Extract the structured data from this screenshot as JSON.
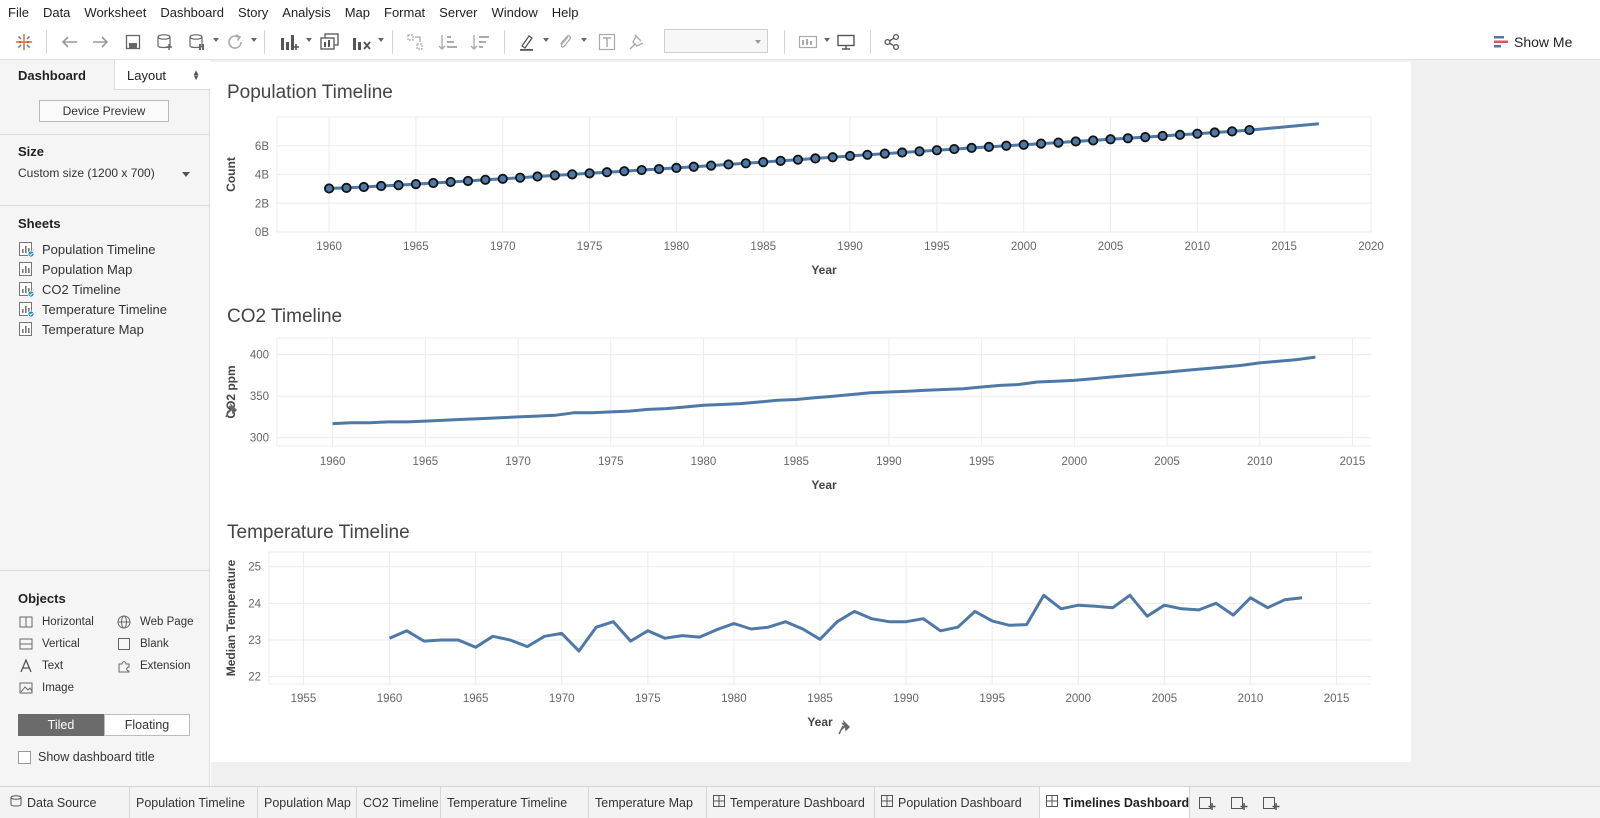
{
  "menu": [
    "File",
    "Data",
    "Worksheet",
    "Dashboard",
    "Story",
    "Analysis",
    "Map",
    "Format",
    "Server",
    "Window",
    "Help"
  ],
  "toolbar": {
    "show_me_label": "Show Me",
    "icons": [
      "tableau-logo-icon",
      "undo-icon",
      "redo-icon",
      "save-icon",
      "new-data-source-icon",
      "pause-updates-icon",
      "refresh-icon",
      "new-worksheet-icon",
      "duplicate-icon",
      "clear-sheet-icon",
      "swap-icon",
      "sort-ascending-icon",
      "sort-descending-icon",
      "highlight-icon",
      "annotate-icon",
      "text-label-icon",
      "pin-icon",
      "fit-select",
      "card-view-icon",
      "presentation-icon",
      "share-icon"
    ]
  },
  "side_panel": {
    "tab_dashboard": "Dashboard",
    "tab_layout": "Layout",
    "device_preview": "Device Preview",
    "size_heading": "Size",
    "size_value": "Custom size (1200 x 700)",
    "sheets_heading": "Sheets",
    "sheets": [
      {
        "label": "Population Timeline",
        "used": true
      },
      {
        "label": "Population Map",
        "used": false
      },
      {
        "label": "CO2 Timeline",
        "used": true
      },
      {
        "label": "Temperature Timeline",
        "used": true
      },
      {
        "label": "Temperature Map",
        "used": false
      }
    ],
    "objects_heading": "Objects",
    "objects": [
      {
        "label": "Horizontal",
        "icon": "horizontal-container-icon"
      },
      {
        "label": "Web Page",
        "icon": "globe-icon"
      },
      {
        "label": "Vertical",
        "icon": "vertical-container-icon"
      },
      {
        "label": "Blank",
        "icon": "blank-icon"
      },
      {
        "label": "Text",
        "icon": "text-icon"
      },
      {
        "label": "Extension",
        "icon": "puzzle-icon"
      },
      {
        "label": "Image",
        "icon": "image-icon"
      }
    ],
    "tiled_label": "Tiled",
    "floating_label": "Floating",
    "show_title_label": "Show dashboard title"
  },
  "colors": {
    "line": "#4e79a7",
    "marker_fill": "#4e79a7",
    "marker_stroke": "#111111",
    "grid": "#ececec",
    "active_tab_bg": "#ffffff"
  },
  "chart_data": [
    {
      "type": "line",
      "title": "Population Timeline",
      "xlabel": "Year",
      "ylabel": "Count",
      "xlim": [
        1957,
        2020
      ],
      "ylim": [
        0,
        8
      ],
      "xticks": [
        1960,
        1965,
        1970,
        1975,
        1980,
        1985,
        1990,
        1995,
        2000,
        2005,
        2010,
        2015,
        2020
      ],
      "yticks": [
        {
          "v": 0,
          "label": "0B"
        },
        {
          "v": 2,
          "label": "2B"
        },
        {
          "v": 4,
          "label": "4B"
        },
        {
          "v": 6,
          "label": "6B"
        }
      ],
      "markers": true,
      "marker_until": 2013,
      "series": [
        {
          "x": [
            1960,
            1961,
            1962,
            1963,
            1964,
            1965,
            1966,
            1967,
            1968,
            1969,
            1970,
            1971,
            1972,
            1973,
            1974,
            1975,
            1976,
            1977,
            1978,
            1979,
            1980,
            1981,
            1982,
            1983,
            1984,
            1985,
            1986,
            1987,
            1988,
            1989,
            1990,
            1991,
            1992,
            1993,
            1994,
            1995,
            1996,
            1997,
            1998,
            1999,
            2000,
            2001,
            2002,
            2003,
            2004,
            2005,
            2006,
            2007,
            2008,
            2009,
            2010,
            2011,
            2012,
            2013,
            2017
          ],
          "values": [
            3.03,
            3.07,
            3.13,
            3.2,
            3.26,
            3.33,
            3.41,
            3.48,
            3.55,
            3.63,
            3.7,
            3.78,
            3.86,
            3.94,
            4.01,
            4.08,
            4.16,
            4.23,
            4.31,
            4.38,
            4.46,
            4.54,
            4.62,
            4.7,
            4.78,
            4.86,
            4.95,
            5.03,
            5.12,
            5.2,
            5.29,
            5.37,
            5.45,
            5.53,
            5.61,
            5.69,
            5.77,
            5.85,
            5.92,
            6.0,
            6.07,
            6.15,
            6.22,
            6.3,
            6.37,
            6.45,
            6.52,
            6.6,
            6.68,
            6.76,
            6.84,
            6.92,
            7.0,
            7.09,
            7.53
          ]
        }
      ]
    },
    {
      "type": "line",
      "title": "CO2 Timeline",
      "xlabel": "Year",
      "ylabel": "CO2 ppm",
      "xlim": [
        1957,
        2016
      ],
      "ylim": [
        290,
        420
      ],
      "xticks": [
        1960,
        1965,
        1970,
        1975,
        1980,
        1985,
        1990,
        1995,
        2000,
        2005,
        2010,
        2015
      ],
      "yticks": [
        {
          "v": 300,
          "label": "300"
        },
        {
          "v": 350,
          "label": "350"
        },
        {
          "v": 400,
          "label": "400"
        }
      ],
      "markers": false,
      "series": [
        {
          "x": [
            1960,
            1961,
            1962,
            1963,
            1964,
            1965,
            1966,
            1967,
            1968,
            1969,
            1970,
            1971,
            1972,
            1973,
            1974,
            1975,
            1976,
            1977,
            1978,
            1979,
            1980,
            1981,
            1982,
            1983,
            1984,
            1985,
            1986,
            1987,
            1988,
            1989,
            1990,
            1991,
            1992,
            1993,
            1994,
            1995,
            1996,
            1997,
            1998,
            1999,
            2000,
            2001,
            2002,
            2003,
            2004,
            2005,
            2006,
            2007,
            2008,
            2009,
            2010,
            2011,
            2012,
            2013
          ],
          "values": [
            317,
            318,
            318,
            319,
            319,
            320,
            321,
            322,
            323,
            324,
            325,
            326,
            327,
            330,
            330,
            331,
            332,
            334,
            335,
            337,
            339,
            340,
            341,
            343,
            345,
            346,
            348,
            350,
            352,
            354,
            355,
            356,
            357,
            358,
            359,
            361,
            363,
            364,
            367,
            368,
            369,
            371,
            373,
            375,
            377,
            379,
            381,
            383,
            385,
            387,
            390,
            392,
            394,
            397
          ]
        }
      ]
    },
    {
      "type": "line",
      "title": "Temperature Timeline",
      "xlabel": "Year",
      "ylabel": "Median Temperature",
      "xlim": [
        1953,
        2017
      ],
      "ylim": [
        21.8,
        25.4
      ],
      "xticks": [
        1955,
        1960,
        1965,
        1970,
        1975,
        1980,
        1985,
        1990,
        1995,
        2000,
        2005,
        2010,
        2015
      ],
      "yticks": [
        {
          "v": 22,
          "label": "22"
        },
        {
          "v": 23,
          "label": "23"
        },
        {
          "v": 24,
          "label": "24"
        },
        {
          "v": 25,
          "label": "25"
        }
      ],
      "markers": false,
      "series": [
        {
          "x": [
            1960,
            1961,
            1962,
            1963,
            1964,
            1965,
            1966,
            1967,
            1968,
            1969,
            1970,
            1971,
            1972,
            1973,
            1974,
            1975,
            1976,
            1977,
            1978,
            1979,
            1980,
            1981,
            1982,
            1983,
            1984,
            1985,
            1986,
            1987,
            1988,
            1989,
            1990,
            1991,
            1992,
            1993,
            1994,
            1995,
            1996,
            1997,
            1998,
            1999,
            2000,
            2001,
            2002,
            2003,
            2004,
            2005,
            2006,
            2007,
            2008,
            2009,
            2010,
            2011,
            2012,
            2013
          ],
          "values": [
            23.05,
            23.25,
            22.97,
            23.0,
            23.0,
            22.8,
            23.1,
            23.0,
            22.82,
            23.1,
            23.18,
            22.7,
            23.35,
            23.5,
            22.97,
            23.25,
            23.05,
            23.12,
            23.08,
            23.28,
            23.45,
            23.3,
            23.35,
            23.5,
            23.3,
            23.02,
            23.5,
            23.78,
            23.58,
            23.5,
            23.5,
            23.58,
            23.25,
            23.35,
            23.78,
            23.52,
            23.4,
            23.42,
            24.22,
            23.85,
            23.95,
            23.92,
            23.88,
            24.22,
            23.65,
            23.95,
            23.85,
            23.82,
            24.0,
            23.68,
            24.15,
            23.88,
            24.1,
            24.15
          ]
        }
      ]
    }
  ],
  "bottom_tabs": [
    {
      "label": "Data Source",
      "icon": "data-source-icon",
      "active": false
    },
    {
      "label": "Population Timeline",
      "icon": "",
      "active": false
    },
    {
      "label": "Population Map",
      "icon": "",
      "active": false
    },
    {
      "label": "CO2 Timeline",
      "icon": "",
      "active": false
    },
    {
      "label": "Temperature Timeline",
      "icon": "",
      "active": false
    },
    {
      "label": "Temperature Map",
      "icon": "",
      "active": false
    },
    {
      "label": "Temperature Dashboard",
      "icon": "dashboard-icon",
      "active": false
    },
    {
      "label": "Population Dashboard",
      "icon": "dashboard-icon",
      "active": false
    },
    {
      "label": "Timelines Dashboard",
      "icon": "dashboard-icon",
      "active": true
    }
  ]
}
